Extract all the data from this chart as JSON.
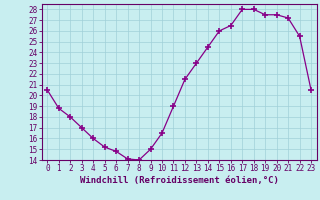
{
  "x": [
    0,
    1,
    2,
    3,
    4,
    5,
    6,
    7,
    8,
    9,
    10,
    11,
    12,
    13,
    14,
    15,
    16,
    17,
    18,
    19,
    20,
    21,
    22,
    23
  ],
  "y": [
    20.5,
    18.8,
    18.0,
    17.0,
    16.0,
    15.2,
    14.8,
    14.1,
    14.0,
    15.0,
    16.5,
    19.0,
    21.5,
    23.0,
    24.5,
    26.0,
    26.5,
    28.0,
    28.0,
    27.5,
    27.5,
    27.2,
    25.5,
    20.5
  ],
  "line_color": "#880088",
  "marker": "+",
  "marker_size": 4,
  "bg_color": "#c8eef0",
  "grid_color": "#a0d0d8",
  "xlabel": "Windchill (Refroidissement éolien,°C)",
  "ylim": [
    14,
    28.5
  ],
  "xlim": [
    -0.5,
    23.5
  ],
  "yticks": [
    14,
    15,
    16,
    17,
    18,
    19,
    20,
    21,
    22,
    23,
    24,
    25,
    26,
    27,
    28
  ],
  "xticks": [
    0,
    1,
    2,
    3,
    4,
    5,
    6,
    7,
    8,
    9,
    10,
    11,
    12,
    13,
    14,
    15,
    16,
    17,
    18,
    19,
    20,
    21,
    22,
    23
  ],
  "xlabel_fontsize": 6.5,
  "tick_fontsize": 5.5,
  "axis_color": "#660066",
  "title_color": "#660066"
}
